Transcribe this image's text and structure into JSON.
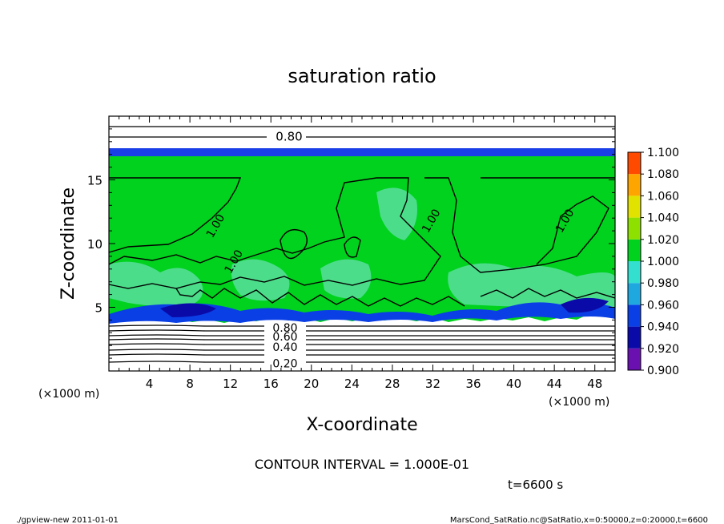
{
  "chart_data": {
    "type": "heatmap",
    "title": "saturation ratio",
    "xlabel": "X-coordinate",
    "ylabel": "Z-coordinate",
    "x_unit": "(×1000 m)",
    "y_unit": "(×1000 m)",
    "xlim": [
      0,
      50
    ],
    "ylim": [
      0,
      20
    ],
    "x_ticks": [
      4,
      8,
      12,
      16,
      20,
      24,
      28,
      32,
      36,
      40,
      44,
      48
    ],
    "y_ticks": [
      5,
      10,
      15
    ],
    "colorbar": {
      "levels": [
        0.9,
        0.92,
        0.94,
        0.96,
        0.98,
        1.0,
        1.02,
        1.04,
        1.06,
        1.08,
        1.1
      ],
      "labels": [
        "0.900",
        "0.920",
        "0.940",
        "0.960",
        "0.980",
        "1.000",
        "1.020",
        "1.040",
        "1.060",
        "1.080",
        "1.100"
      ],
      "colors": [
        "#6a0fb0",
        "#0a0aa8",
        "#0a3fe6",
        "#1fa8e0",
        "#33e0d0",
        "#00d21e",
        "#8ee000",
        "#e2e200",
        "#ffa500",
        "#ff4a00",
        "#ff9090"
      ]
    },
    "field_colors": {
      "saturated": "#00d21e",
      "subsaturated": "#ffffff",
      "cloud_base": "#0a3fe6",
      "cloud_base_core": "#0a0aa8",
      "mixed": "#66e0b0",
      "top_band": "#1a3fe6"
    },
    "contour_labels": [
      {
        "text": "0.80",
        "x": 17.8,
        "z": 18.4
      },
      {
        "text": "1.00",
        "x": 10.5,
        "z": 11.4
      },
      {
        "text": "1.00",
        "x": 12.3,
        "z": 8.6
      },
      {
        "text": "1.00",
        "x": 31.8,
        "z": 11.8
      },
      {
        "text": "1.00",
        "x": 45.0,
        "z": 11.8
      },
      {
        "text": "0.80",
        "x": 17.4,
        "z": 3.4
      },
      {
        "text": "0.60",
        "x": 17.4,
        "z": 2.7
      },
      {
        "text": "0.40",
        "x": 17.4,
        "z": 1.9
      },
      {
        "text": "0.20",
        "x": 17.4,
        "z": 0.6
      }
    ],
    "contour_interval": "CONTOUR INTERVAL = 1.000E-01",
    "time_label": "t=6600 s"
  },
  "footer": {
    "left": "./gpview-new  2011-01-01",
    "right": "MarsCond_SatRatio.nc@SatRatio,x=0:50000,z=0:20000,t=6600"
  }
}
